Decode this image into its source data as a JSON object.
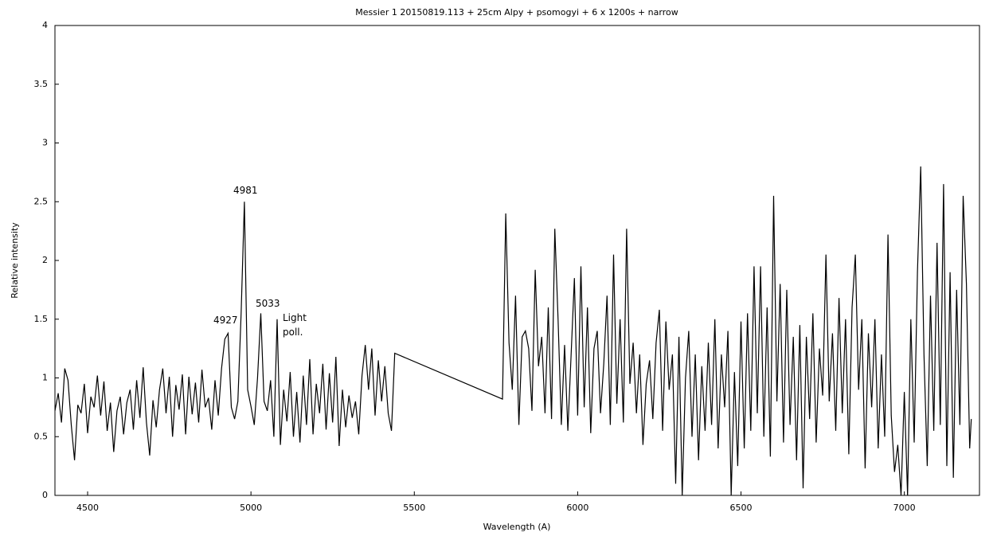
{
  "chart_data": {
    "type": "line",
    "title": "Messier 1 20150819.113 + 25cm Alpy + psomogyi + 6 x 1200s + narrow",
    "xlabel": "Wavelength (A)",
    "ylabel": "Relative intensity",
    "xlim": [
      4400,
      7230
    ],
    "ylim": [
      0,
      4
    ],
    "xticks": [
      4500,
      5000,
      5500,
      6000,
      6500,
      7000
    ],
    "yticks": [
      0,
      0.5,
      1,
      1.5,
      2,
      2.5,
      3,
      3.5,
      4
    ],
    "color": "#000000",
    "annotations": [
      "4927",
      "4981",
      "5033",
      "Light poll."
    ],
    "x": [
      4400,
      4410,
      4420,
      4430,
      4440,
      4450,
      4460,
      4470,
      4480,
      4490,
      4500,
      4510,
      4520,
      4530,
      4540,
      4550,
      4560,
      4570,
      4580,
      4590,
      4600,
      4610,
      4620,
      4630,
      4640,
      4650,
      4660,
      4670,
      4680,
      4690,
      4700,
      4710,
      4720,
      4730,
      4740,
      4750,
      4760,
      4770,
      4780,
      4790,
      4800,
      4810,
      4820,
      4830,
      4840,
      4850,
      4860,
      4870,
      4880,
      4890,
      4900,
      4910,
      4920,
      4930,
      4940,
      4950,
      4960,
      4970,
      4980,
      4990,
      5000,
      5010,
      5020,
      5030,
      5040,
      5050,
      5060,
      5070,
      5080,
      5090,
      5100,
      5110,
      5120,
      5130,
      5140,
      5150,
      5160,
      5170,
      5180,
      5190,
      5200,
      5210,
      5220,
      5230,
      5240,
      5250,
      5260,
      5270,
      5280,
      5290,
      5300,
      5310,
      5320,
      5330,
      5340,
      5350,
      5360,
      5370,
      5380,
      5390,
      5400,
      5410,
      5420,
      5430,
      5440,
      5770,
      5780,
      5790,
      5800,
      5810,
      5820,
      5830,
      5840,
      5850,
      5860,
      5870,
      5880,
      5890,
      5900,
      5910,
      5920,
      5930,
      5940,
      5950,
      5960,
      5970,
      5980,
      5990,
      6000,
      6010,
      6020,
      6030,
      6040,
      6050,
      6060,
      6070,
      6080,
      6090,
      6100,
      6110,
      6120,
      6130,
      6140,
      6150,
      6160,
      6170,
      6180,
      6190,
      6200,
      6210,
      6220,
      6230,
      6240,
      6250,
      6260,
      6270,
      6280,
      6290,
      6300,
      6310,
      6320,
      6330,
      6340,
      6350,
      6360,
      6370,
      6380,
      6390,
      6400,
      6410,
      6420,
      6430,
      6440,
      6450,
      6460,
      6470,
      6480,
      6490,
      6500,
      6510,
      6520,
      6530,
      6540,
      6550,
      6560,
      6570,
      6580,
      6590,
      6600,
      6610,
      6620,
      6630,
      6640,
      6650,
      6660,
      6670,
      6680,
      6690,
      6700,
      6710,
      6720,
      6730,
      6740,
      6750,
      6760,
      6770,
      6780,
      6790,
      6800,
      6810,
      6820,
      6830,
      6840,
      6850,
      6860,
      6870,
      6880,
      6890,
      6900,
      6910,
      6920,
      6930,
      6940,
      6950,
      6960,
      6970,
      6980,
      6990,
      7000,
      7010,
      7020,
      7030,
      7040,
      7050,
      7060,
      7070,
      7080,
      7090,
      7100,
      7110,
      7120,
      7130,
      7140,
      7150,
      7160,
      7170,
      7180,
      7190,
      7200,
      7205
    ],
    "values": [
      0.72,
      0.87,
      0.62,
      1.08,
      0.98,
      0.6,
      0.3,
      0.77,
      0.7,
      0.95,
      0.53,
      0.84,
      0.75,
      1.02,
      0.68,
      0.97,
      0.55,
      0.79,
      0.37,
      0.72,
      0.84,
      0.52,
      0.79,
      0.9,
      0.56,
      0.98,
      0.66,
      1.09,
      0.62,
      0.34,
      0.81,
      0.58,
      0.9,
      1.08,
      0.7,
      1.01,
      0.5,
      0.94,
      0.73,
      1.03,
      0.52,
      1.01,
      0.69,
      0.96,
      0.62,
      1.07,
      0.75,
      0.83,
      0.56,
      0.98,
      0.68,
      1.08,
      1.33,
      1.38,
      0.75,
      0.65,
      0.8,
      1.55,
      2.5,
      0.9,
      0.76,
      0.6,
      1.0,
      1.55,
      0.8,
      0.72,
      0.98,
      0.5,
      1.5,
      0.43,
      0.9,
      0.63,
      1.05,
      0.5,
      0.88,
      0.45,
      1.02,
      0.6,
      1.16,
      0.52,
      0.95,
      0.7,
      1.12,
      0.56,
      1.04,
      0.62,
      1.18,
      0.42,
      0.9,
      0.58,
      0.85,
      0.66,
      0.8,
      0.52,
      1.02,
      1.28,
      0.9,
      1.25,
      0.68,
      1.15,
      0.8,
      1.1,
      0.7,
      0.55,
      1.21,
      0.82,
      2.4,
      1.3,
      0.9,
      1.7,
      0.6,
      1.35,
      1.4,
      1.25,
      0.72,
      1.92,
      1.1,
      1.35,
      0.7,
      1.6,
      0.65,
      2.27,
      1.5,
      0.6,
      1.28,
      0.55,
      1.2,
      1.85,
      0.68,
      1.95,
      0.75,
      1.6,
      0.53,
      1.25,
      1.4,
      0.7,
      1.12,
      1.7,
      0.6,
      2.05,
      0.78,
      1.5,
      0.62,
      2.27,
      0.95,
      1.3,
      0.7,
      1.2,
      0.43,
      0.95,
      1.15,
      0.65,
      1.3,
      1.58,
      0.55,
      1.48,
      0.9,
      1.2,
      0.1,
      1.35,
      0.0,
      1.0,
      1.4,
      0.5,
      1.2,
      0.3,
      1.1,
      0.55,
      1.3,
      0.6,
      1.5,
      0.4,
      1.2,
      0.75,
      1.4,
      0.0,
      1.05,
      0.25,
      1.48,
      0.4,
      1.55,
      0.55,
      1.95,
      0.7,
      1.95,
      0.5,
      1.6,
      0.33,
      2.55,
      0.8,
      1.8,
      0.45,
      1.75,
      0.6,
      1.35,
      0.3,
      1.45,
      0.06,
      1.35,
      0.65,
      1.55,
      0.45,
      1.25,
      0.85,
      2.05,
      0.8,
      1.38,
      0.55,
      1.68,
      0.7,
      1.5,
      0.35,
      1.6,
      2.05,
      0.9,
      1.5,
      0.23,
      1.38,
      0.75,
      1.5,
      0.4,
      1.2,
      0.5,
      2.22,
      0.68,
      0.2,
      0.43,
      0.0,
      0.88,
      0.0,
      1.5,
      0.45,
      1.9,
      2.8,
      1.2,
      0.25,
      1.7,
      0.55,
      2.15,
      0.6,
      2.65,
      0.25,
      1.9,
      0.15,
      1.75,
      0.6,
      2.55,
      1.8,
      0.4,
      0.65
    ]
  }
}
